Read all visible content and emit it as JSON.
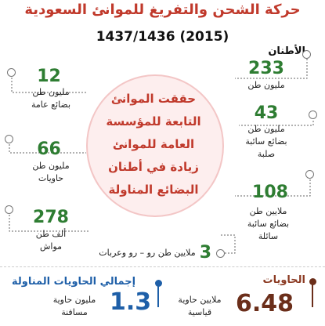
{
  "title": "حركة الشحن والتفريغ  للموانئ السعودية",
  "subtitle": "1437/1436 (2015)",
  "center": [
    "حققت الموانئ",
    "التابعة للمؤسسة",
    "العامة للموانئ",
    "زيادة في أطنان",
    "البضائع المناولة"
  ],
  "right_column": {
    "heading": "الأطنان",
    "items": [
      {
        "number": "233",
        "label_lines": [
          "مليون طن"
        ]
      },
      {
        "number": "43",
        "label_lines": [
          "مليون طن",
          "بضائع سائبة",
          "صلبة"
        ]
      },
      {
        "number": "108",
        "label_lines": [
          "ملايين طن",
          "بضائع سائبة",
          "سائلة"
        ]
      }
    ]
  },
  "left_column": {
    "items": [
      {
        "number": "12",
        "label_lines": [
          "مليون طن",
          "بضائع عامة"
        ]
      },
      {
        "number": "66",
        "label_lines": [
          "مليون طن",
          "حاويات"
        ]
      },
      {
        "number": "278",
        "label_lines": [
          "ألف طن",
          "مواش"
        ]
      }
    ]
  },
  "roro": {
    "number": "3",
    "label": "ملايين طن رو – رو وعربات"
  },
  "containers": {
    "heading": "الحاويات",
    "number": "6.48",
    "label_lines": [
      "ملايين حاوية",
      "قياسية"
    ]
  },
  "containers_total": {
    "heading": "إجمالي الحاويات المناولة",
    "number": "1.3",
    "label_lines": [
      "مليون حاوية",
      "مسافنة"
    ]
  },
  "colors": {
    "title": "#c0392b",
    "numbers": "#2e7d32",
    "blue": "#1e5fa8",
    "brown": "#6b2e1a"
  }
}
